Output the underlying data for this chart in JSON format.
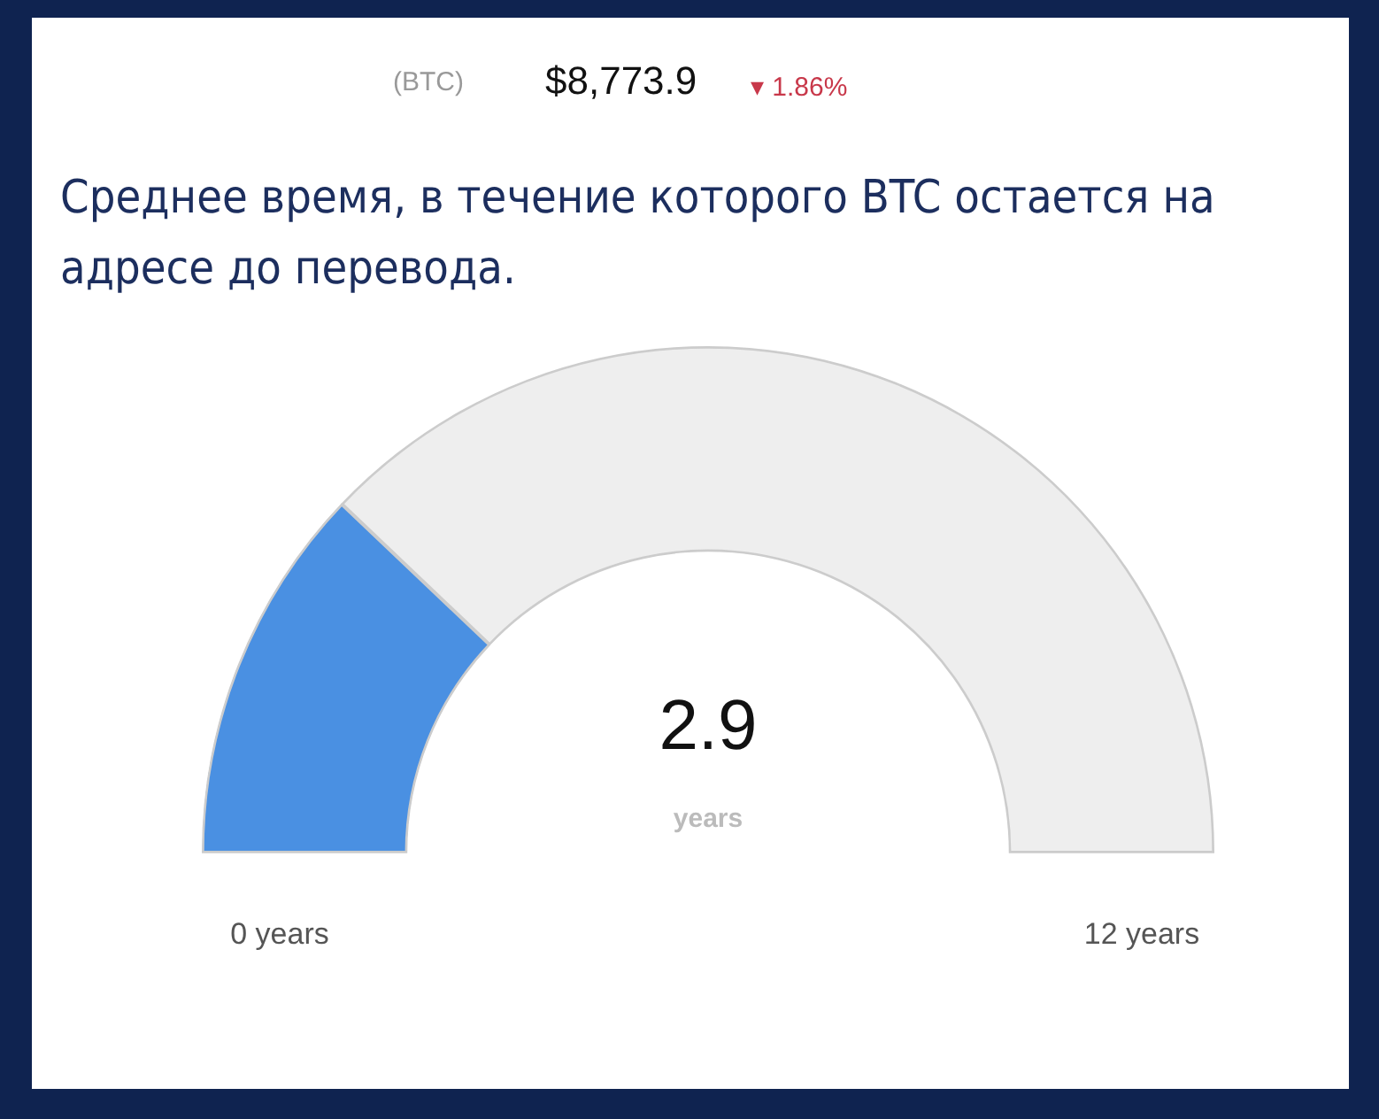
{
  "chart_data": {
    "type": "donut",
    "title": "Среднее время, в течение которого BTC остается на адресе до перевода.",
    "categories": [
      null,
      null
    ],
    "values": [
      24.2,
      75.8
    ],
    "colors": [
      "#4a90e2",
      "#eeeeee"
    ],
    "annotations": [
      "(BTC)",
      "$8,773.9",
      "▾ 1.86%",
      "2.9",
      "years",
      "0 years",
      "12 years"
    ]
  }
}
